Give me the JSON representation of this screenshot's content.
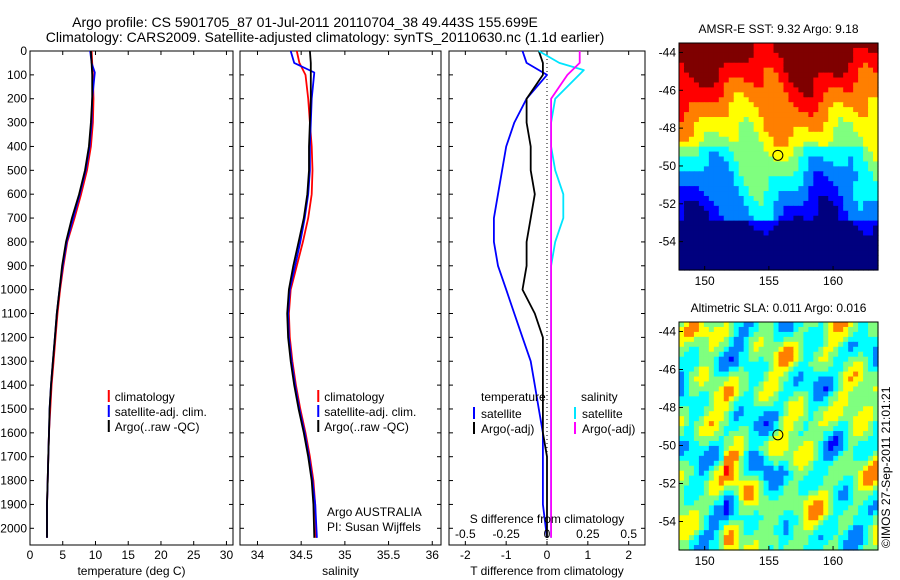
{
  "header": {
    "title_line1": "Argo profile: CS 5901705_87 01-Jul-2011 20110704_38 49.443S 155.699E",
    "title_line2": "Climatology: CARS2009. Satellite-adjusted climatology: synTS_20110630.nc (1.1d earlier)"
  },
  "credit": "©IMOS 27-Sep-2011 21:01:21",
  "colors": {
    "red": "#ff0000",
    "blue": "#0000ff",
    "black": "#000000",
    "cyan": "#00e5ff",
    "magenta": "#ff00ff"
  },
  "chart_data": [
    {
      "type": "line",
      "xlabel": "temperature (deg C)",
      "ylabel": "",
      "xlim": [
        0,
        31
      ],
      "ylim": [
        2070,
        0
      ],
      "xticks": [
        0,
        5,
        10,
        15,
        20,
        25,
        30
      ],
      "yticks": [
        0,
        100,
        200,
        300,
        400,
        500,
        600,
        700,
        800,
        900,
        1000,
        1100,
        1200,
        1300,
        1400,
        1500,
        1600,
        1700,
        1800,
        1900,
        2000
      ],
      "grid": false,
      "legend": {
        "placement": "lower-center",
        "entries": [
          "climatology",
          "satellite-adj. clim.",
          "Argo(..raw -QC)"
        ]
      },
      "series": [
        {
          "name": "climatology",
          "color": "#ff0000",
          "x": [
            9.4,
            9.5,
            9.6,
            9.7,
            9.6,
            9.3,
            8.7,
            7.8,
            6.8,
            5.7,
            5.1,
            4.6,
            4.2,
            3.9,
            3.6,
            3.3,
            3.1,
            2.9,
            2.8,
            2.7,
            2.6,
            2.6
          ],
          "y": [
            0,
            50,
            100,
            200,
            300,
            400,
            500,
            600,
            700,
            800,
            900,
            1000,
            1100,
            1200,
            1300,
            1400,
            1500,
            1600,
            1700,
            1800,
            1900,
            2040
          ]
        },
        {
          "name": "satellite-adj. clim.",
          "color": "#0000ff",
          "x": [
            9.2,
            9.4,
            9.9,
            9.5,
            9.4,
            9.1,
            8.5,
            7.6,
            6.6,
            5.6,
            5.0,
            4.5,
            4.1,
            3.8,
            3.5,
            3.2,
            3.0,
            2.9,
            2.8,
            2.7,
            2.6,
            2.6
          ],
          "y": [
            0,
            50,
            90,
            200,
            300,
            400,
            500,
            600,
            700,
            800,
            900,
            1000,
            1100,
            1200,
            1300,
            1400,
            1500,
            1600,
            1700,
            1800,
            1900,
            2040
          ]
        },
        {
          "name": "Argo(..raw -QC)",
          "color": "#000000",
          "x": [
            9.3,
            9.4,
            9.5,
            9.5,
            9.3,
            9.0,
            8.4,
            7.5,
            6.4,
            5.5,
            4.9,
            4.5,
            4.1,
            3.8,
            3.5,
            3.2,
            3.0,
            2.9,
            2.8,
            2.7,
            2.6,
            2.6
          ],
          "y": [
            0,
            50,
            100,
            200,
            300,
            400,
            500,
            600,
            700,
            800,
            900,
            1000,
            1100,
            1200,
            1300,
            1400,
            1500,
            1600,
            1700,
            1800,
            1900,
            2040
          ]
        }
      ]
    },
    {
      "type": "line",
      "xlabel": "salinity",
      "ylabel": "",
      "xlim": [
        33.8,
        36.1
      ],
      "ylim": [
        2070,
        0
      ],
      "xticks": [
        34,
        34.5,
        35,
        35.5,
        36
      ],
      "grid": false,
      "legend": {
        "placement": "lower-center",
        "entries": [
          "climatology",
          "satellite-adj. clim.",
          "Argo(..raw -QC)"
        ]
      },
      "annotation_line1": "Argo AUSTRALIA",
      "annotation_line2": "PI: Susan Wijffels",
      "series": [
        {
          "name": "climatology",
          "color": "#ff0000",
          "x": [
            34.45,
            34.48,
            34.55,
            34.58,
            34.6,
            34.62,
            34.63,
            34.62,
            34.58,
            34.52,
            34.45,
            34.38,
            34.36,
            34.37,
            34.4,
            34.44,
            34.49,
            34.55,
            34.6,
            34.64,
            34.66,
            34.67
          ],
          "y": [
            0,
            50,
            100,
            200,
            300,
            400,
            500,
            600,
            700,
            800,
            900,
            1000,
            1100,
            1200,
            1300,
            1400,
            1500,
            1600,
            1700,
            1800,
            1900,
            2040
          ]
        },
        {
          "name": "satellite-adj. clim.",
          "color": "#0000ff",
          "x": [
            34.38,
            34.42,
            34.65,
            34.62,
            34.61,
            34.6,
            34.6,
            34.58,
            34.54,
            34.49,
            34.43,
            34.37,
            34.35,
            34.36,
            34.39,
            34.43,
            34.48,
            34.54,
            34.59,
            34.63,
            34.66,
            34.68
          ],
          "y": [
            0,
            50,
            90,
            200,
            300,
            400,
            500,
            600,
            700,
            800,
            900,
            1000,
            1100,
            1200,
            1300,
            1400,
            1500,
            1600,
            1700,
            1800,
            1900,
            2040
          ]
        },
        {
          "name": "Argo(..raw -QC)",
          "color": "#000000",
          "x": [
            34.6,
            34.61,
            34.61,
            34.61,
            34.6,
            34.59,
            34.59,
            34.57,
            34.53,
            34.47,
            34.41,
            34.36,
            34.34,
            34.35,
            34.38,
            34.42,
            34.47,
            34.53,
            34.58,
            34.62,
            34.64,
            34.65
          ],
          "y": [
            0,
            50,
            100,
            200,
            300,
            400,
            500,
            600,
            700,
            800,
            900,
            1000,
            1100,
            1200,
            1300,
            1400,
            1500,
            1600,
            1700,
            1800,
            1900,
            2040
          ]
        }
      ]
    },
    {
      "type": "line",
      "xlabel": "T difference from climatology",
      "x2label": "S difference from climatology",
      "xlim": [
        -2.4,
        2.4
      ],
      "ylim": [
        2070,
        0
      ],
      "xticks": [
        -2,
        -1,
        0,
        1,
        2
      ],
      "x2ticks": [
        "-0.5",
        "-0.25",
        "0",
        "0.25",
        "0.5"
      ],
      "x2_positions": [
        -2,
        -1,
        0,
        1,
        2
      ],
      "grid": false,
      "zero_line": "dotted",
      "legend": {
        "placement": "lower-center",
        "temperature_title": "temperature",
        "salinity_title": "salinity",
        "temperature_entries": [
          "satellite",
          "Argo(-adj)"
        ],
        "salinity_entries": [
          "satellite",
          "Argo(-adj)"
        ]
      },
      "series": [
        {
          "name": "temperature satellite",
          "color": "#0000ff",
          "x": [
            -0.6,
            -0.5,
            0.0,
            -0.5,
            -0.8,
            -1.0,
            -1.1,
            -1.2,
            -1.3,
            -1.3,
            -1.2,
            -1.0,
            -0.8,
            -0.6,
            -0.4,
            -0.3,
            -0.2,
            -0.1,
            -0.1,
            -0.1,
            -0.1,
            0.0
          ],
          "y": [
            0,
            50,
            100,
            200,
            300,
            400,
            500,
            600,
            700,
            800,
            900,
            1000,
            1100,
            1200,
            1300,
            1400,
            1500,
            1600,
            1700,
            1800,
            1900,
            2040
          ]
        },
        {
          "name": "temperature Argo(-adj)",
          "color": "#000000",
          "x": [
            -0.2,
            -0.1,
            -0.1,
            -0.5,
            -0.5,
            -0.4,
            -0.4,
            -0.3,
            -0.4,
            -0.5,
            -0.5,
            -0.6,
            -0.3,
            -0.1,
            -0.1,
            -0.1,
            -0.1,
            -0.1,
            0.0,
            0.0,
            0.0,
            0.0
          ],
          "y": [
            0,
            50,
            100,
            200,
            300,
            400,
            500,
            600,
            700,
            800,
            900,
            1000,
            1100,
            1200,
            1300,
            1400,
            1500,
            1600,
            1700,
            1800,
            1900,
            2040
          ]
        },
        {
          "name": "salinity satellite",
          "color": "#00e5ff",
          "x": [
            -0.2,
            0.3,
            0.9,
            0.2,
            0.1,
            0.1,
            0.2,
            0.4,
            0.4,
            0.2,
            0.1,
            0.1,
            0.1,
            0.1,
            0.1,
            0.1,
            0.1,
            0.1,
            0.1,
            0.1,
            0.1,
            0.1
          ],
          "y": [
            0,
            50,
            80,
            200,
            300,
            400,
            500,
            600,
            700,
            800,
            900,
            1000,
            1100,
            1200,
            1300,
            1400,
            1500,
            1600,
            1700,
            1800,
            1900,
            2040
          ]
        },
        {
          "name": "salinity Argo(-adj)",
          "color": "#ff00ff",
          "x": [
            0.8,
            0.8,
            0.5,
            0.1,
            0.1,
            0.1,
            0.1,
            0.1,
            0.1,
            0.1,
            0.1,
            0.1,
            0.1,
            0.1,
            0.1,
            0.1,
            0.1,
            0.1,
            0.1,
            0.1,
            0.1,
            0.1
          ],
          "y": [
            0,
            50,
            100,
            200,
            300,
            400,
            500,
            600,
            700,
            800,
            900,
            1000,
            1100,
            1200,
            1300,
            1400,
            1500,
            1600,
            1700,
            1800,
            1900,
            2040
          ]
        }
      ]
    },
    {
      "type": "heatmap",
      "title": "AMSR-E SST: 9.32 Argo: 9.18",
      "xlim": [
        148,
        163.5
      ],
      "ylim": [
        -55.5,
        -43.5
      ],
      "xticks": [
        150,
        155,
        160
      ],
      "yticks": [
        -44,
        -46,
        -48,
        -50,
        -52,
        -54
      ],
      "marker": {
        "lon": 155.7,
        "lat": -49.44
      },
      "colormap": [
        "#00007f",
        "#0000ff",
        "#007fff",
        "#00ffff",
        "#7fff7f",
        "#ffff00",
        "#ff7f00",
        "#ff0000",
        "#7f0000"
      ]
    },
    {
      "type": "heatmap",
      "title": "Altimetric SLA: 0.011 Argo: 0.016",
      "xlim": [
        148,
        163.5
      ],
      "ylim": [
        -55.5,
        -43.5
      ],
      "xticks": [
        150,
        155,
        160
      ],
      "yticks": [
        -44,
        -46,
        -48,
        -50,
        -52,
        -54
      ],
      "marker": {
        "lon": 155.7,
        "lat": -49.44
      },
      "colormap": [
        "#00007f",
        "#0000ff",
        "#007fff",
        "#00ffff",
        "#7fff7f",
        "#ffff00",
        "#ff7f00",
        "#ff0000",
        "#7f0000"
      ]
    }
  ]
}
